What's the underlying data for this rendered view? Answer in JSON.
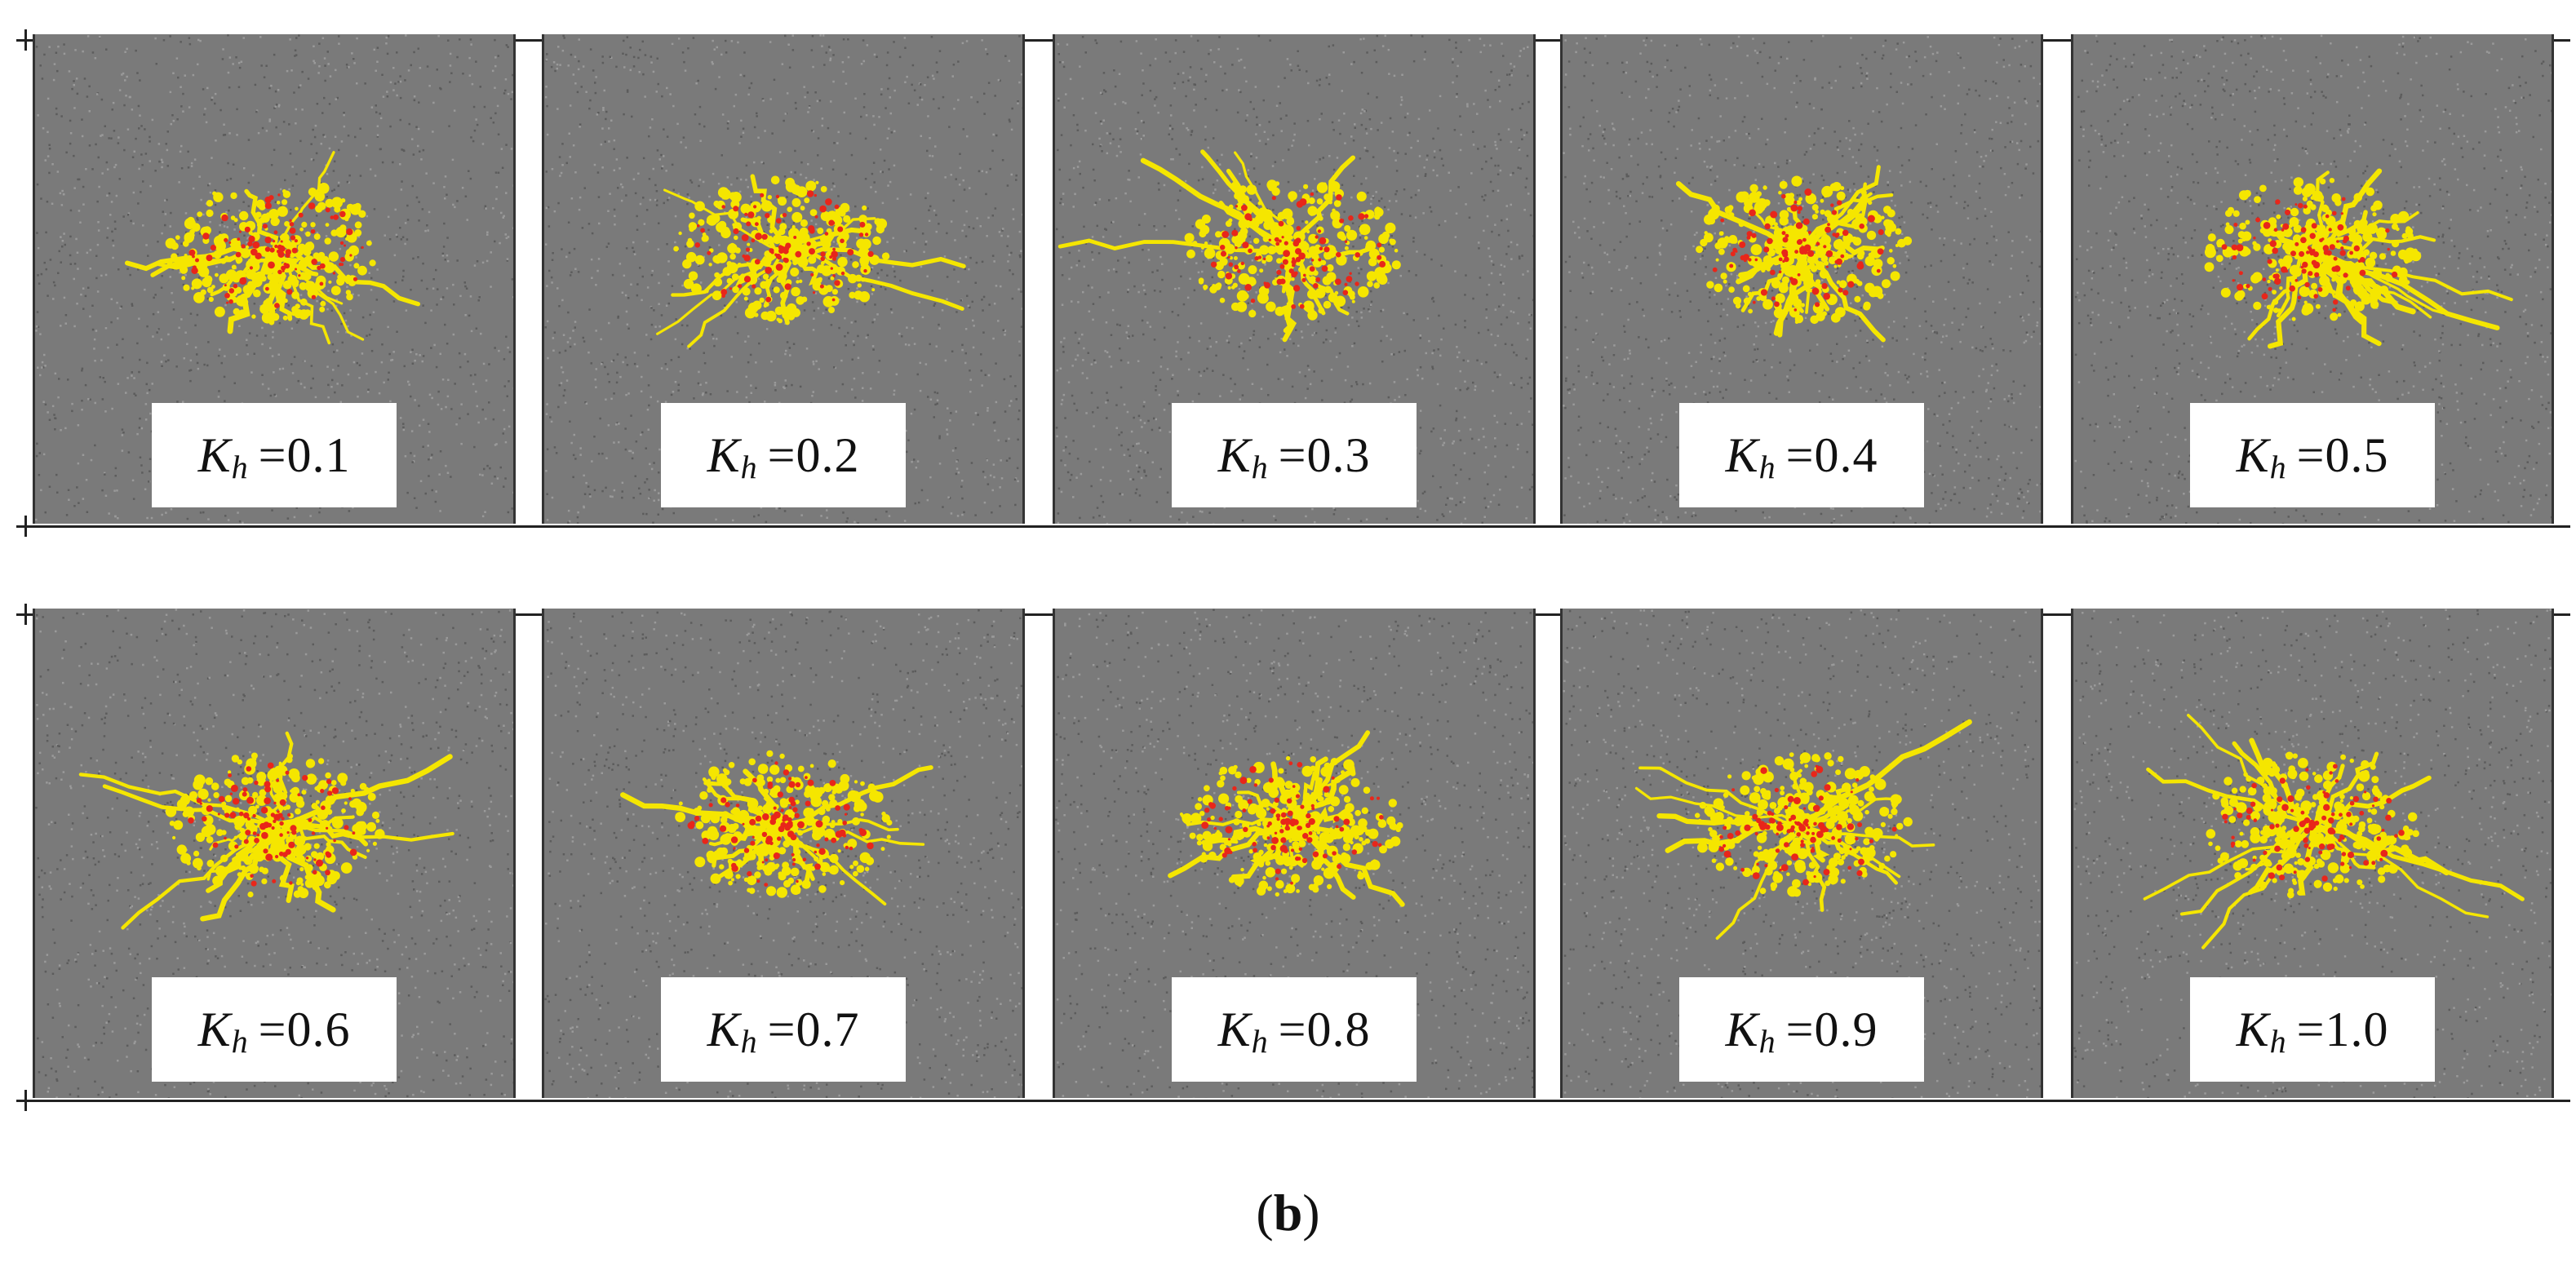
{
  "figure": {
    "caption": {
      "open": "(",
      "letter": "b",
      "close": ")"
    },
    "parameter_symbol": "K",
    "parameter_subscript": "h",
    "equals": "= ",
    "rows": [
      {
        "panels": [
          {
            "value": "0.1"
          },
          {
            "value": "0.2"
          },
          {
            "value": "0.3"
          },
          {
            "value": "0.4"
          },
          {
            "value": "0.5"
          }
        ]
      },
      {
        "panels": [
          {
            "value": "0.6"
          },
          {
            "value": "0.7"
          },
          {
            "value": "0.8"
          },
          {
            "value": "0.9"
          },
          {
            "value": "1.0"
          }
        ]
      }
    ],
    "colors": {
      "background_granular": "#7a7a7a",
      "crack_primary": "#f5e600",
      "crack_secondary": "#e8261a",
      "frame": "#222222"
    }
  }
}
